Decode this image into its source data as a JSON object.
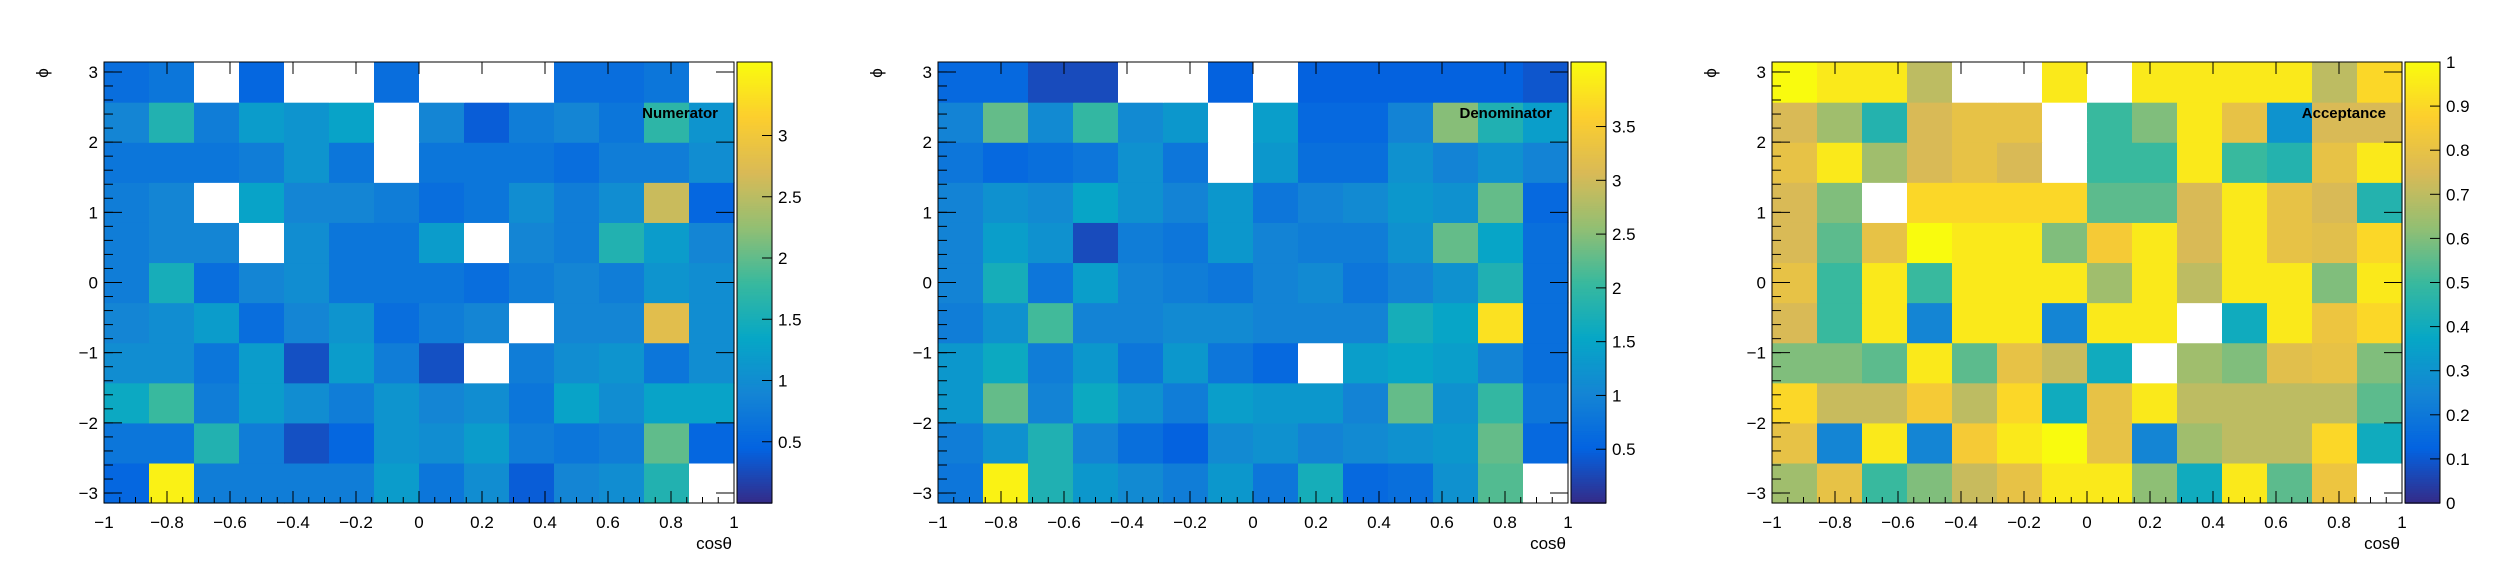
{
  "palette": [
    "#352a87",
    "#0363e1",
    "#1485d4",
    "#06a7c6",
    "#38b99e",
    "#92bf73",
    "#d9ba56",
    "#fcce2e",
    "#f9fb0e"
  ],
  "chart_data": [
    {
      "type": "heatmap",
      "title": "Numerator",
      "xlabel": "cosθ",
      "ylabel": "ϕ",
      "x_range": [
        -1,
        1
      ],
      "y_range": [
        -3.1416,
        3.1416
      ],
      "x_ticks": [
        -1,
        -0.8,
        -0.6,
        -0.4,
        -0.2,
        0,
        0.2,
        0.4,
        0.6,
        0.8,
        1
      ],
      "y_ticks": [
        -3,
        -2,
        -1,
        0,
        1,
        2,
        3
      ],
      "z_range": [
        0,
        3.6
      ],
      "z_ticks": [
        0.5,
        1,
        1.5,
        2,
        2.5,
        3
      ],
      "grid": false,
      "legend": "colorbar-right",
      "values": [
        [
          0.5,
          3.5,
          0.8,
          0.8,
          0.8,
          0.8,
          1.2,
          0.7,
          1.0,
          0.4,
          0.9,
          1.0,
          1.6,
          0.0
        ],
        [
          0.7,
          0.7,
          1.6,
          0.8,
          0.3,
          0.5,
          1.1,
          1.0,
          1.2,
          0.8,
          0.7,
          0.8,
          2.0,
          0.5
        ],
        [
          1.4,
          1.8,
          0.8,
          1.2,
          1.0,
          0.8,
          1.1,
          0.9,
          1.0,
          0.7,
          1.3,
          1.0,
          1.3,
          1.3
        ],
        [
          1.0,
          1.0,
          0.7,
          1.2,
          0.3,
          1.2,
          0.8,
          0.3,
          0.0,
          0.8,
          1.0,
          1.1,
          0.7,
          1.0
        ],
        [
          0.9,
          1.0,
          1.2,
          0.6,
          0.9,
          1.1,
          0.6,
          0.8,
          0.9,
          0.0,
          0.9,
          0.9,
          2.8,
          1.0
        ],
        [
          0.8,
          1.5,
          0.6,
          0.9,
          1.0,
          0.7,
          0.7,
          0.7,
          0.6,
          0.8,
          0.9,
          0.8,
          1.1,
          1.0
        ],
        [
          0.8,
          0.9,
          0.9,
          0.0,
          1.0,
          0.7,
          0.7,
          1.2,
          0.0,
          0.9,
          0.8,
          1.6,
          1.2,
          0.9
        ],
        [
          0.8,
          0.9,
          0.0,
          1.3,
          0.9,
          0.9,
          0.8,
          0.6,
          0.7,
          1.0,
          0.8,
          1.0,
          2.6,
          0.5
        ],
        [
          0.7,
          0.7,
          0.7,
          0.8,
          1.1,
          0.7,
          0.0,
          0.7,
          0.7,
          0.7,
          0.6,
          0.8,
          0.8,
          1.0
        ],
        [
          0.9,
          1.6,
          0.8,
          1.2,
          1.1,
          1.3,
          0.0,
          0.9,
          0.4,
          0.8,
          0.9,
          0.7,
          1.7,
          1.1
        ],
        [
          0.6,
          0.7,
          0.0,
          0.5,
          0.0,
          0.0,
          0.6,
          0.0,
          0.0,
          0.0,
          0.6,
          0.6,
          0.7,
          0.0
        ]
      ]
    },
    {
      "type": "heatmap",
      "title": "Denominator",
      "xlabel": "cosθ",
      "ylabel": "ϕ",
      "x_range": [
        -1,
        1
      ],
      "y_range": [
        -3.1416,
        3.1416
      ],
      "x_ticks": [
        -1,
        -0.8,
        -0.6,
        -0.4,
        -0.2,
        0,
        0.2,
        0.4,
        0.6,
        0.8,
        1
      ],
      "y_ticks": [
        -3,
        -2,
        -1,
        0,
        1,
        2,
        3
      ],
      "z_range": [
        0,
        4.1
      ],
      "z_ticks": [
        0.5,
        1,
        1.5,
        2,
        2.5,
        3,
        3.5
      ],
      "grid": false,
      "legend": "colorbar-right",
      "values": [
        [
          0.8,
          4.0,
          1.8,
          1.3,
          1.1,
          0.9,
          1.3,
          0.8,
          1.7,
          0.6,
          0.7,
          1.2,
          2.2,
          0.0
        ],
        [
          0.9,
          1.2,
          1.8,
          1.0,
          0.7,
          0.5,
          1.1,
          1.2,
          1.0,
          1.1,
          1.2,
          1.3,
          2.3,
          0.6
        ],
        [
          1.3,
          2.3,
          1.0,
          1.6,
          1.2,
          0.9,
          1.4,
          1.3,
          1.3,
          1.0,
          2.3,
          1.2,
          2.0,
          0.8
        ],
        [
          1.3,
          1.6,
          0.9,
          1.3,
          0.8,
          1.3,
          0.8,
          0.6,
          0.0,
          1.4,
          1.5,
          1.4,
          1.0,
          0.7
        ],
        [
          0.9,
          1.2,
          2.1,
          1.0,
          1.0,
          1.1,
          1.1,
          1.0,
          1.0,
          1.0,
          1.7,
          1.5,
          3.8,
          0.7
        ],
        [
          1.0,
          1.7,
          0.8,
          1.4,
          1.0,
          0.9,
          0.8,
          1.0,
          1.1,
          0.8,
          1.0,
          1.2,
          1.8,
          0.7
        ],
        [
          1.0,
          1.4,
          1.2,
          0.3,
          0.9,
          0.8,
          1.3,
          1.0,
          0.9,
          0.9,
          1.2,
          2.3,
          1.5,
          0.7
        ],
        [
          1.0,
          1.2,
          1.1,
          1.5,
          1.2,
          1.0,
          1.3,
          0.8,
          1.0,
          1.1,
          1.3,
          1.2,
          2.3,
          0.6
        ],
        [
          0.8,
          0.6,
          0.7,
          0.8,
          1.2,
          0.8,
          0.0,
          1.3,
          0.7,
          0.7,
          1.2,
          1.0,
          1.2,
          1.0
        ],
        [
          1.0,
          2.3,
          1.1,
          2.0,
          1.1,
          1.3,
          0.0,
          1.4,
          0.6,
          0.6,
          1.0,
          2.5,
          1.8,
          1.4
        ],
        [
          0.6,
          0.6,
          0.3,
          0.3,
          0.0,
          0.0,
          0.5,
          0.0,
          0.5,
          0.5,
          0.5,
          0.5,
          0.5,
          0.4
        ]
      ]
    },
    {
      "type": "heatmap",
      "title": "Acceptance",
      "xlabel": "cosθ",
      "ylabel": "ϕ",
      "x_range": [
        -1,
        1
      ],
      "y_range": [
        -3.1416,
        3.1416
      ],
      "x_ticks": [
        -1,
        -0.8,
        -0.6,
        -0.4,
        -0.2,
        0,
        0.2,
        0.4,
        0.6,
        0.8,
        1
      ],
      "y_ticks": [
        -3,
        -2,
        -1,
        0,
        1,
        2,
        3
      ],
      "z_range": [
        0,
        1
      ],
      "z_ticks": [
        0,
        0.1,
        0.2,
        0.3,
        0.4,
        0.5,
        0.6,
        0.7,
        0.8,
        0.9,
        1
      ],
      "grid": false,
      "legend": "colorbar-right",
      "values": [
        [
          0.65,
          0.8,
          0.5,
          0.6,
          0.72,
          0.8,
          0.95,
          0.95,
          0.62,
          0.4,
          0.95,
          0.55,
          0.82,
          0.0
        ],
        [
          0.8,
          0.25,
          0.95,
          0.25,
          0.85,
          0.95,
          1.0,
          0.8,
          0.25,
          0.65,
          0.7,
          0.7,
          0.9,
          0.4
        ],
        [
          0.9,
          0.72,
          0.72,
          0.85,
          0.7,
          0.9,
          0.4,
          0.8,
          0.95,
          0.7,
          0.7,
          0.7,
          0.7,
          0.55
        ],
        [
          0.6,
          0.6,
          0.55,
          0.95,
          0.55,
          0.8,
          0.72,
          0.4,
          0.0,
          0.65,
          0.6,
          0.78,
          0.8,
          0.6
        ],
        [
          0.75,
          0.5,
          0.95,
          0.25,
          0.95,
          0.95,
          0.25,
          0.95,
          0.95,
          0.0,
          0.4,
          0.95,
          0.82,
          0.9
        ],
        [
          0.8,
          0.5,
          0.95,
          0.5,
          0.95,
          0.95,
          0.95,
          0.65,
          0.95,
          0.7,
          0.95,
          0.95,
          0.6,
          0.95
        ],
        [
          0.75,
          0.55,
          0.8,
          1.0,
          0.95,
          0.95,
          0.6,
          0.85,
          0.95,
          0.75,
          0.95,
          0.8,
          0.78,
          0.9
        ],
        [
          0.75,
          0.6,
          0.0,
          0.9,
          0.9,
          0.9,
          0.9,
          0.55,
          0.55,
          0.75,
          0.95,
          0.8,
          0.75,
          0.45
        ],
        [
          0.8,
          0.95,
          0.65,
          0.75,
          0.8,
          0.75,
          0.0,
          0.5,
          0.5,
          0.95,
          0.5,
          0.45,
          0.8,
          0.95
        ],
        [
          0.75,
          0.65,
          0.45,
          0.75,
          0.8,
          0.8,
          0.0,
          0.5,
          0.6,
          0.95,
          0.8,
          0.3,
          0.75,
          0.75
        ],
        [
          1.0,
          0.95,
          0.95,
          0.7,
          0.0,
          0.0,
          0.95,
          0.0,
          0.95,
          0.95,
          0.95,
          0.95,
          0.7,
          0.9
        ]
      ]
    }
  ]
}
